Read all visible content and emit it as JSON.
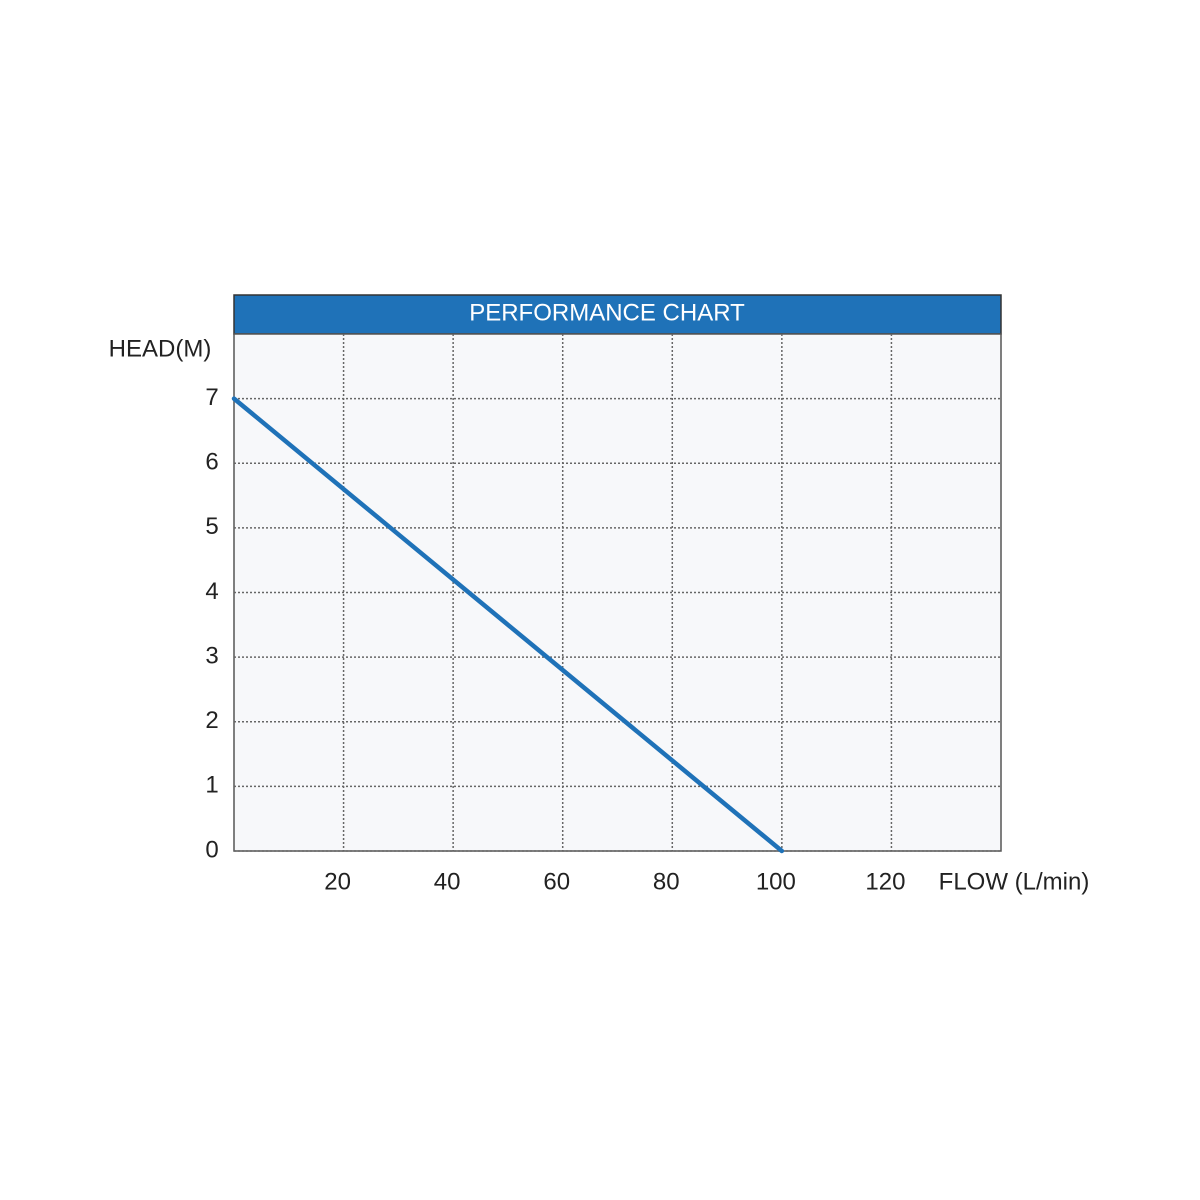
{
  "chart_data": {
    "type": "line",
    "title": "PERFORMANCE CHART",
    "x_label": "FLOW (L/min)",
    "y_label": "HEAD(M)",
    "x": [
      0,
      100
    ],
    "series": [
      {
        "name": "Head",
        "color": "#1f72b8",
        "values": [
          7,
          0
        ]
      }
    ],
    "xlim": [
      0,
      140
    ],
    "xticks": [
      20,
      40,
      60,
      80,
      100,
      120
    ],
    "ylim": [
      0,
      8
    ],
    "yticks": [
      0,
      1,
      2,
      3,
      4,
      5,
      6,
      7
    ],
    "grid": true,
    "header_color": "#1f72b8"
  }
}
